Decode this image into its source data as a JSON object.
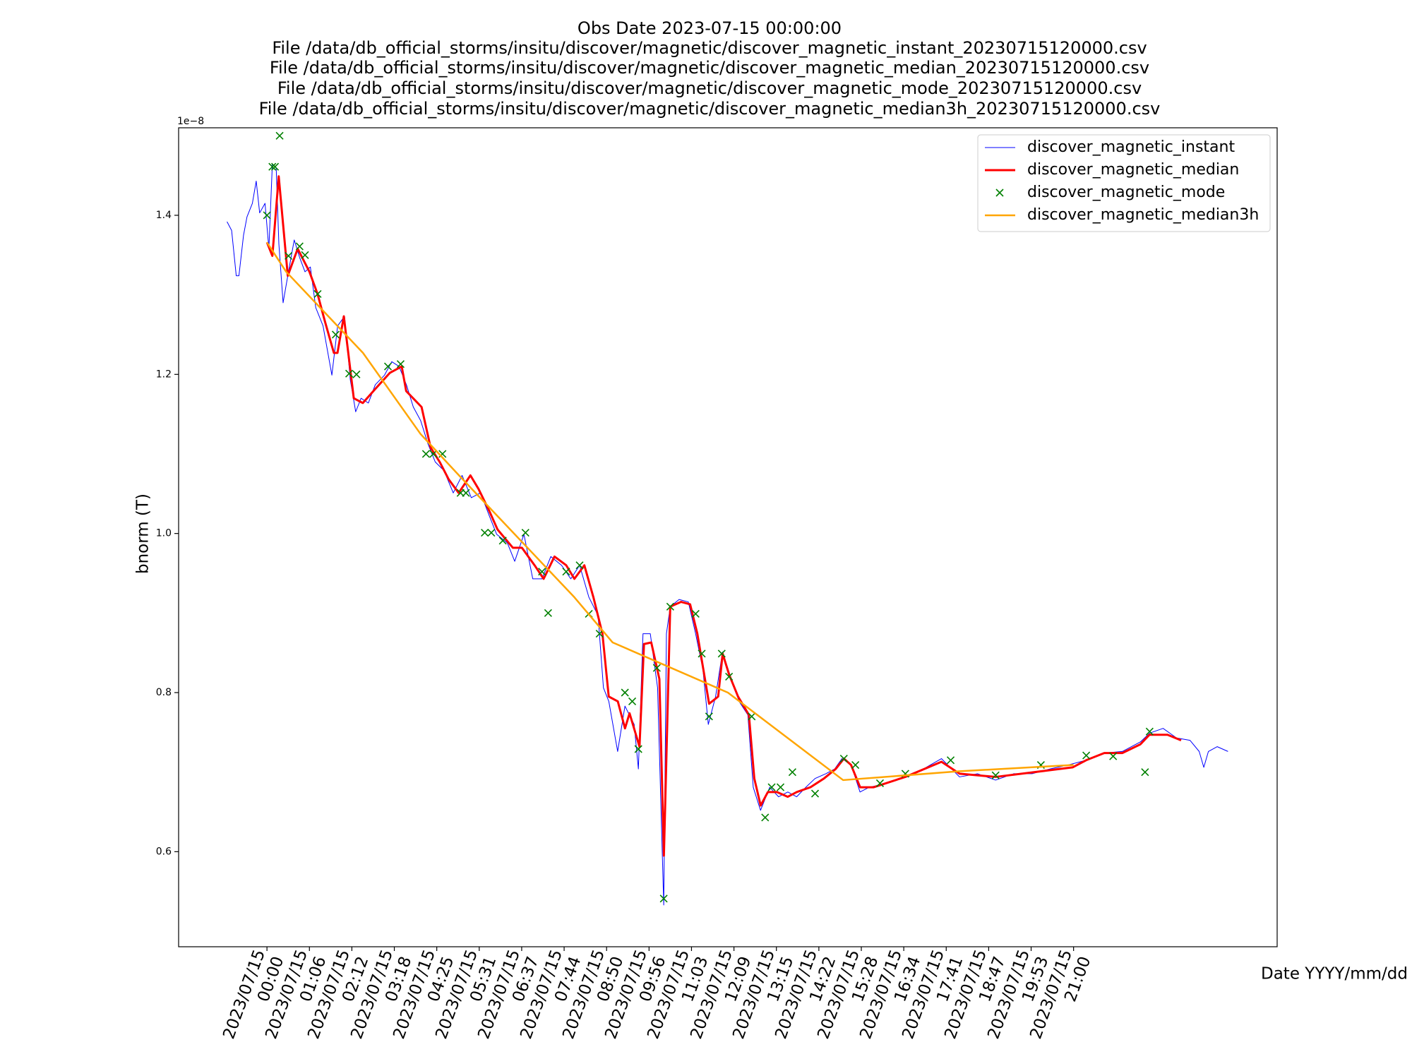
{
  "chart_data": {
    "type": "line",
    "title": "Obs Date 2023-07-15 00:00:00",
    "subtitle": [
      "File /data/db_official_storms/insitu/discover/magnetic/discover_magnetic_instant_20230715120000.csv",
      "File /data/db_official_storms/insitu/discover/magnetic/discover_magnetic_median_20230715120000.csv",
      "File /data/db_official_storms/insitu/discover/magnetic/discover_magnetic_mode_20230715120000.csv",
      "File /data/db_official_storms/insitu/discover/magnetic/discover_magnetic_median3h_20230715120000.csv"
    ],
    "x_label": "Date YYYY/mm/dd",
    "y_label": "bnorm (T)",
    "y_offset_label": "1e−8",
    "xlim": [
      -2.3,
      26.3
    ],
    "ylim": [
      0.4805,
      1.51
    ],
    "xticks": [
      {
        "value": 0,
        "label": "2023/07/15\n00:00"
      },
      {
        "value": 1.1053,
        "label": "2023/07/15\n01:06"
      },
      {
        "value": 2.2105,
        "label": "2023/07/15\n02:12"
      },
      {
        "value": 3.3158,
        "label": "2023/07/15\n03:18"
      },
      {
        "value": 4.4211,
        "label": "2023/07/15\n04:25"
      },
      {
        "value": 5.5263,
        "label": "2023/07/15\n05:31"
      },
      {
        "value": 6.6316,
        "label": "2023/07/15\n06:37"
      },
      {
        "value": 7.7368,
        "label": "2023/07/15\n07:44"
      },
      {
        "value": 8.8421,
        "label": "2023/07/15\n08:50"
      },
      {
        "value": 9.9474,
        "label": "2023/07/15\n09:56"
      },
      {
        "value": 11.0526,
        "label": "2023/07/15\n11:03"
      },
      {
        "value": 12.1579,
        "label": "2023/07/15\n12:09"
      },
      {
        "value": 13.2632,
        "label": "2023/07/15\n13:15"
      },
      {
        "value": 14.3684,
        "label": "2023/07/15\n14:22"
      },
      {
        "value": 15.4737,
        "label": "2023/07/15\n15:28"
      },
      {
        "value": 16.5789,
        "label": "2023/07/15\n16:34"
      },
      {
        "value": 17.6842,
        "label": "2023/07/15\n17:41"
      },
      {
        "value": 18.7895,
        "label": "2023/07/15\n18:47"
      },
      {
        "value": 19.8947,
        "label": "2023/07/15\n19:53"
      },
      {
        "value": 21,
        "label": "2023/07/15\n21:00"
      }
    ],
    "yticks": [
      0.6,
      0.8,
      {
        "value": 1,
        "label": "1.0"
      },
      1.2,
      1.4
    ],
    "grid": false,
    "legend": "upper right",
    "series": [
      {
        "name": "discover_magnetic_instant",
        "color": "#0000ff",
        "style": "line",
        "width": 1,
        "x": [
          -1.04,
          -0.92,
          -0.8,
          -0.73,
          -0.61,
          -0.52,
          -0.38,
          -0.28,
          -0.19,
          -0.05,
          0.05,
          0.14,
          0.24,
          0.31,
          0.42,
          0.56,
          0.71,
          0.85,
          0.99,
          1.13,
          1.27,
          1.46,
          1.69,
          1.84,
          2.02,
          2.17,
          2.31,
          2.45,
          2.64,
          2.82,
          3.06,
          3.25,
          3.44,
          3.63,
          3.81,
          4.0,
          4.19,
          4.38,
          4.61,
          4.85,
          5.08,
          5.32,
          5.56,
          5.79,
          5.98,
          6.26,
          6.45,
          6.69,
          6.92,
          7.16,
          7.39,
          7.67,
          7.91,
          8.14,
          8.38,
          8.62,
          8.76,
          8.9,
          9.13,
          9.32,
          9.56,
          9.67,
          9.79,
          9.98,
          10.17,
          10.33,
          10.4,
          10.5,
          10.73,
          10.97,
          11.16,
          11.35,
          11.49,
          11.68,
          11.86,
          12.05,
          12.29,
          12.52,
          12.66,
          12.85,
          13.09,
          13.32,
          13.56,
          13.79,
          14.03,
          14.27,
          14.55,
          14.78,
          14.97,
          15.21,
          15.44,
          15.68,
          16.15,
          16.62,
          17.09,
          17.56,
          18.03,
          18.5,
          18.97,
          19.44,
          19.92,
          20.39,
          20.86,
          21.33,
          21.8,
          22.27,
          22.74,
          22.98,
          23.33,
          23.68,
          24.03,
          24.27,
          24.39,
          24.51,
          24.74,
          25.02
        ],
        "values": [
          1.392,
          1.381,
          1.324,
          1.324,
          1.375,
          1.398,
          1.415,
          1.443,
          1.403,
          1.415,
          1.358,
          1.464,
          1.46,
          1.364,
          1.29,
          1.329,
          1.369,
          1.347,
          1.329,
          1.335,
          1.284,
          1.261,
          1.199,
          1.261,
          1.273,
          1.193,
          1.153,
          1.17,
          1.164,
          1.187,
          1.199,
          1.216,
          1.21,
          1.187,
          1.159,
          1.142,
          1.113,
          1.09,
          1.079,
          1.051,
          1.073,
          1.045,
          1.051,
          1.022,
          0.999,
          0.988,
          0.965,
          0.999,
          0.943,
          0.943,
          0.971,
          0.96,
          0.943,
          0.96,
          0.92,
          0.897,
          0.806,
          0.789,
          0.726,
          0.783,
          0.76,
          0.704,
          0.874,
          0.874,
          0.806,
          0.533,
          0.874,
          0.908,
          0.917,
          0.914,
          0.874,
          0.829,
          0.76,
          0.795,
          0.851,
          0.823,
          0.789,
          0.772,
          0.681,
          0.652,
          0.681,
          0.669,
          0.675,
          0.669,
          0.681,
          0.692,
          0.698,
          0.704,
          0.717,
          0.709,
          0.675,
          0.681,
          0.686,
          0.694,
          0.704,
          0.717,
          0.694,
          0.698,
          0.69,
          0.698,
          0.698,
          0.704,
          0.709,
          0.715,
          0.724,
          0.726,
          0.738,
          0.749,
          0.755,
          0.743,
          0.74,
          0.726,
          0.706,
          0.726,
          0.732,
          0.726
        ]
      },
      {
        "name": "discover_magnetic_median",
        "color": "#ff0000",
        "style": "line",
        "width": 3,
        "x": [
          0,
          0.141,
          0.306,
          0.542,
          0.8,
          1.106,
          1.318,
          1.507,
          1.742,
          1.836,
          2.001,
          2.26,
          2.495,
          2.825,
          3.202,
          3.508,
          3.625,
          4.025,
          4.261,
          4.496,
          4.732,
          4.991,
          5.297,
          5.508,
          5.791,
          6.003,
          6.403,
          6.638,
          6.968,
          7.203,
          7.486,
          7.792,
          8.004,
          8.263,
          8.498,
          8.734,
          8.898,
          9.134,
          9.322,
          9.44,
          9.699,
          9.816,
          10.005,
          10.217,
          10.334,
          10.499,
          10.782,
          11.017,
          11.205,
          11.511,
          11.747,
          11.864,
          12.029,
          12.265,
          12.547,
          12.688,
          12.853,
          13.041,
          13.277,
          13.559,
          13.795,
          14.148,
          14.501,
          14.807,
          15.019,
          15.207,
          15.443,
          15.796,
          16.62,
          17.561,
          18.032,
          18.974,
          20.151,
          20.975,
          21.328,
          21.799,
          22.269,
          22.74,
          22.976,
          23.446,
          23.799
        ],
        "values": [
          1.366,
          1.349,
          1.449,
          1.324,
          1.358,
          1.329,
          1.301,
          1.267,
          1.227,
          1.227,
          1.273,
          1.17,
          1.164,
          1.182,
          1.202,
          1.21,
          1.179,
          1.159,
          1.108,
          1.09,
          1.068,
          1.051,
          1.073,
          1.056,
          1.028,
          1.005,
          0.982,
          0.982,
          0.96,
          0.943,
          0.971,
          0.96,
          0.943,
          0.96,
          0.92,
          0.874,
          0.795,
          0.789,
          0.755,
          0.774,
          0.732,
          0.861,
          0.863,
          0.817,
          0.595,
          0.908,
          0.914,
          0.911,
          0.874,
          0.786,
          0.795,
          0.849,
          0.823,
          0.795,
          0.772,
          0.692,
          0.658,
          0.675,
          0.675,
          0.669,
          0.675,
          0.681,
          0.692,
          0.704,
          0.717,
          0.709,
          0.681,
          0.681,
          0.694,
          0.713,
          0.698,
          0.694,
          0.701,
          0.706,
          0.715,
          0.724,
          0.724,
          0.735,
          0.747,
          0.747,
          0.74
        ]
      },
      {
        "name": "discover_magnetic_mode",
        "color": "#008000",
        "style": "marker",
        "x": [
          0,
          0.14,
          0.21,
          0.33,
          0.56,
          0.85,
          0.99,
          1.32,
          1.79,
          2.14,
          2.33,
          3.15,
          3.48,
          4.14,
          4.33,
          4.57,
          5.04,
          5.18,
          5.67,
          5.84,
          6.14,
          6.73,
          7.16,
          7.32,
          7.79,
          8.14,
          8.38,
          8.66,
          9.32,
          9.51,
          9.67,
          10.15,
          10.33,
          10.5,
          11.16,
          11.32,
          11.51,
          11.84,
          12.03,
          12.62,
          12.97,
          13.14,
          13.37,
          13.68,
          14.27,
          15.02,
          15.32,
          15.96,
          16.62,
          17.8,
          18.97,
          20.15,
          21.33,
          22.03,
          22.86,
          22.98
        ],
        "values": [
          1.4,
          1.461,
          1.461,
          1.5,
          1.349,
          1.361,
          1.35,
          1.301,
          1.25,
          1.201,
          1.2,
          1.21,
          1.213,
          1.1,
          1.1,
          1.1,
          1.051,
          1.051,
          1.001,
          1.001,
          0.991,
          1.001,
          0.952,
          0.9,
          0.952,
          0.96,
          0.899,
          0.874,
          0.8,
          0.789,
          0.729,
          0.831,
          0.541,
          0.908,
          0.899,
          0.849,
          0.77,
          0.849,
          0.82,
          0.77,
          0.643,
          0.681,
          0.681,
          0.7,
          0.673,
          0.717,
          0.709,
          0.686,
          0.698,
          0.715,
          0.696,
          0.709,
          0.721,
          0.72,
          0.7,
          0.751
        ]
      },
      {
        "name": "discover_magnetic_median3h",
        "color": "#ffa500",
        "style": "line",
        "width": 2.5,
        "x": [
          0,
          0.5,
          1.5,
          2.5,
          4,
          5,
          6,
          7,
          8,
          9,
          12,
          15,
          18,
          21
        ],
        "values": [
          1.366,
          1.329,
          1.278,
          1.227,
          1.125,
          1.073,
          1.022,
          0.971,
          0.92,
          0.863,
          0.8,
          0.69,
          0.701,
          0.709
        ]
      }
    ]
  }
}
